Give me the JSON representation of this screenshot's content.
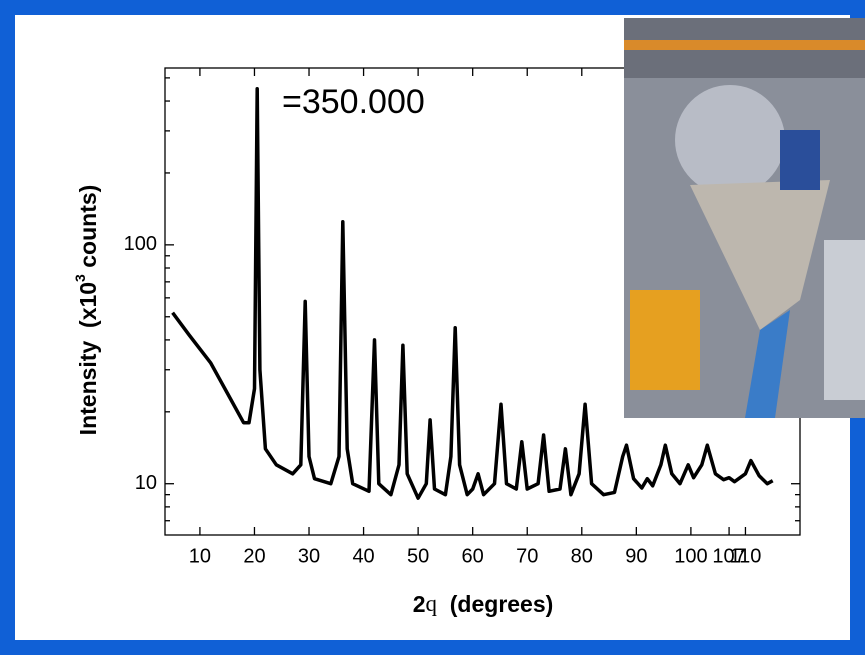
{
  "chart_data": {
    "type": "line",
    "annotation": "=350.000",
    "xlabel": {
      "main": "2",
      "symbol": "q",
      "rest": "  (degrees)"
    },
    "ylabel": {
      "main": "Intensity  (x10",
      "sup": "3",
      "rest": " counts)"
    },
    "xlim": [
      3.6,
      120
    ],
    "ylim": [
      6.1,
      550
    ],
    "log_y": true,
    "color": "#000000",
    "xticks": [
      10,
      20,
      30,
      40,
      50,
      60,
      70,
      80,
      90,
      100,
      107,
      110
    ],
    "yticks": [
      10,
      100
    ],
    "yminor_ticks": [
      7,
      8,
      9,
      20,
      30,
      40,
      50,
      60,
      70,
      80,
      90,
      200,
      300,
      400,
      500
    ],
    "x": [
      5,
      8,
      12,
      15,
      18,
      19,
      20,
      20.5,
      21,
      22,
      24,
      27,
      28.5,
      29.3,
      30,
      31,
      34,
      35.5,
      36.2,
      37,
      38,
      41,
      42,
      42.8,
      45,
      46.5,
      47.2,
      48,
      50,
      51.5,
      52.2,
      53,
      55,
      56,
      56.8,
      57.6,
      59,
      60,
      61,
      62,
      64,
      65.2,
      66.2,
      68,
      69,
      70,
      72,
      73,
      74,
      76,
      77,
      78,
      79.5,
      80.6,
      81.8,
      84,
      86,
      87.5,
      88.2,
      89.5,
      91,
      92,
      93,
      94.5,
      95.3,
      96.5,
      98,
      99.5,
      100.5,
      102,
      103,
      104.5,
      106,
      107,
      108,
      110,
      111,
      112.5,
      114,
      115
    ],
    "values": [
      52,
      42,
      32,
      24,
      18,
      18,
      25,
      450,
      30,
      14,
      12,
      11,
      12,
      58,
      13,
      10.5,
      10,
      13,
      125,
      14,
      10,
      9.3,
      40,
      10,
      9,
      12,
      38,
      11,
      8.7,
      10,
      18.5,
      9.5,
      9,
      13,
      45,
      12,
      9,
      9.5,
      11,
      9,
      10,
      21.5,
      10,
      9.5,
      15,
      9.5,
      10,
      16,
      9.3,
      9.5,
      14,
      9,
      11,
      21.5,
      10,
      9,
      9.2,
      13,
      14.5,
      10.5,
      9.6,
      10.5,
      9.8,
      12,
      14.5,
      11,
      10,
      12,
      10.6,
      12,
      14.5,
      11,
      10.4,
      10.6,
      10.2,
      11,
      12.5,
      10.8,
      10,
      10.3
    ]
  }
}
